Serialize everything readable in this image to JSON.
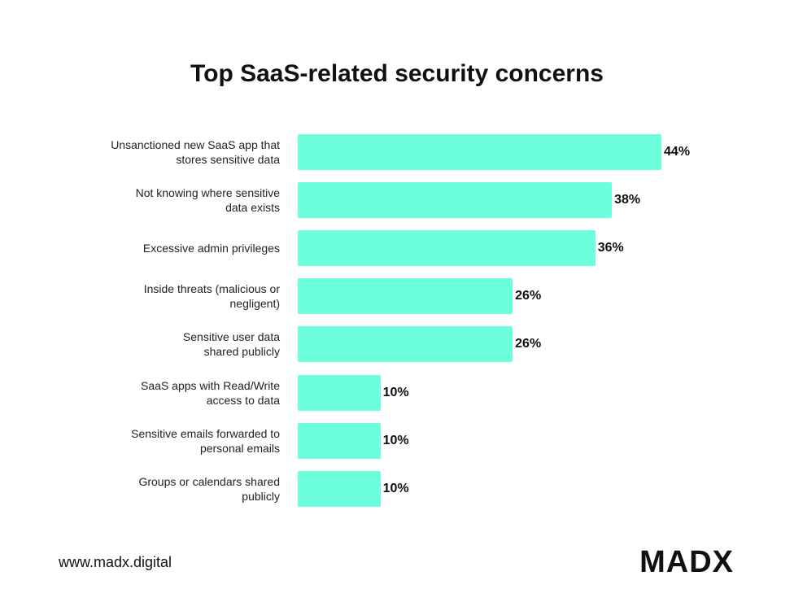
{
  "chart_data": {
    "type": "bar",
    "orientation": "horizontal",
    "title": "Top SaaS-related security concerns",
    "categories": [
      "Unsanctioned new SaaS app that\nstores sensitive data",
      "Not knowing where sensitive\ndata exists",
      "Excessive admin privileges",
      "Inside threats (malicious or\nnegligent)",
      "Sensitive user data\nshared publicly",
      "SaaS apps with Read/Write\naccess to data",
      "Sensitive emails forwarded to\npersonal emails",
      "Groups or calendars shared\npublicly"
    ],
    "values": [
      44,
      38,
      36,
      26,
      26,
      10,
      10,
      10
    ],
    "value_labels": [
      "44%",
      "38%",
      "36%",
      "26%",
      "26%",
      "10%",
      "10%",
      "10%"
    ],
    "color": "#6dffdd"
  },
  "footer": {
    "website": "www.madx.digital",
    "logo": "MADX"
  }
}
